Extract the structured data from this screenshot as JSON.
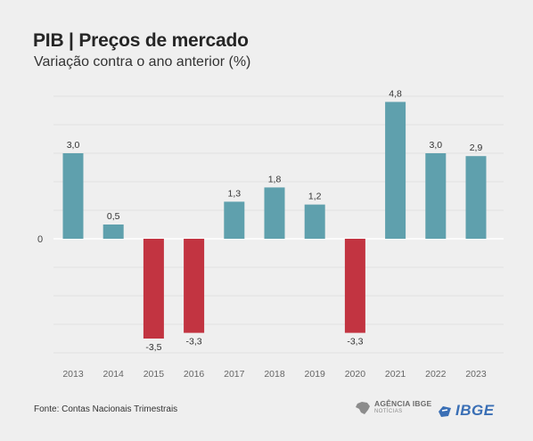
{
  "header": {
    "title": "PIB | Preços de mercado",
    "subtitle": "Variação contra o ano anterior (%)"
  },
  "footer": {
    "source": "Fonte: Contas Nacionais Trimestrais",
    "agencia_line1": "AGÊNCIA IBGE",
    "agencia_line2": "NOTÍCIAS",
    "ibge_logo": "IBGE"
  },
  "chart_data": {
    "type": "bar",
    "categories": [
      "2013",
      "2014",
      "2015",
      "2016",
      "2017",
      "2018",
      "2019",
      "2020",
      "2021",
      "2022",
      "2023"
    ],
    "values": [
      3.0,
      0.5,
      -3.5,
      -3.3,
      1.3,
      1.8,
      1.2,
      -3.3,
      4.8,
      3.0,
      2.9
    ],
    "data_labels": [
      "3,0",
      "0,5",
      "-3,5",
      "-3,3",
      "1,3",
      "1,8",
      "1,2",
      "-3,3",
      "4,8",
      "3,0",
      "2,9"
    ],
    "title": "PIB | Preços de mercado",
    "subtitle": "Variação contra o ano anterior (%)",
    "xlabel": "",
    "ylabel": "",
    "y_tick_labels": [
      "0"
    ],
    "ylim": [
      -4,
      5
    ],
    "grid": true,
    "colors": {
      "positive": "#5fa0ad",
      "negative": "#c23441"
    }
  }
}
